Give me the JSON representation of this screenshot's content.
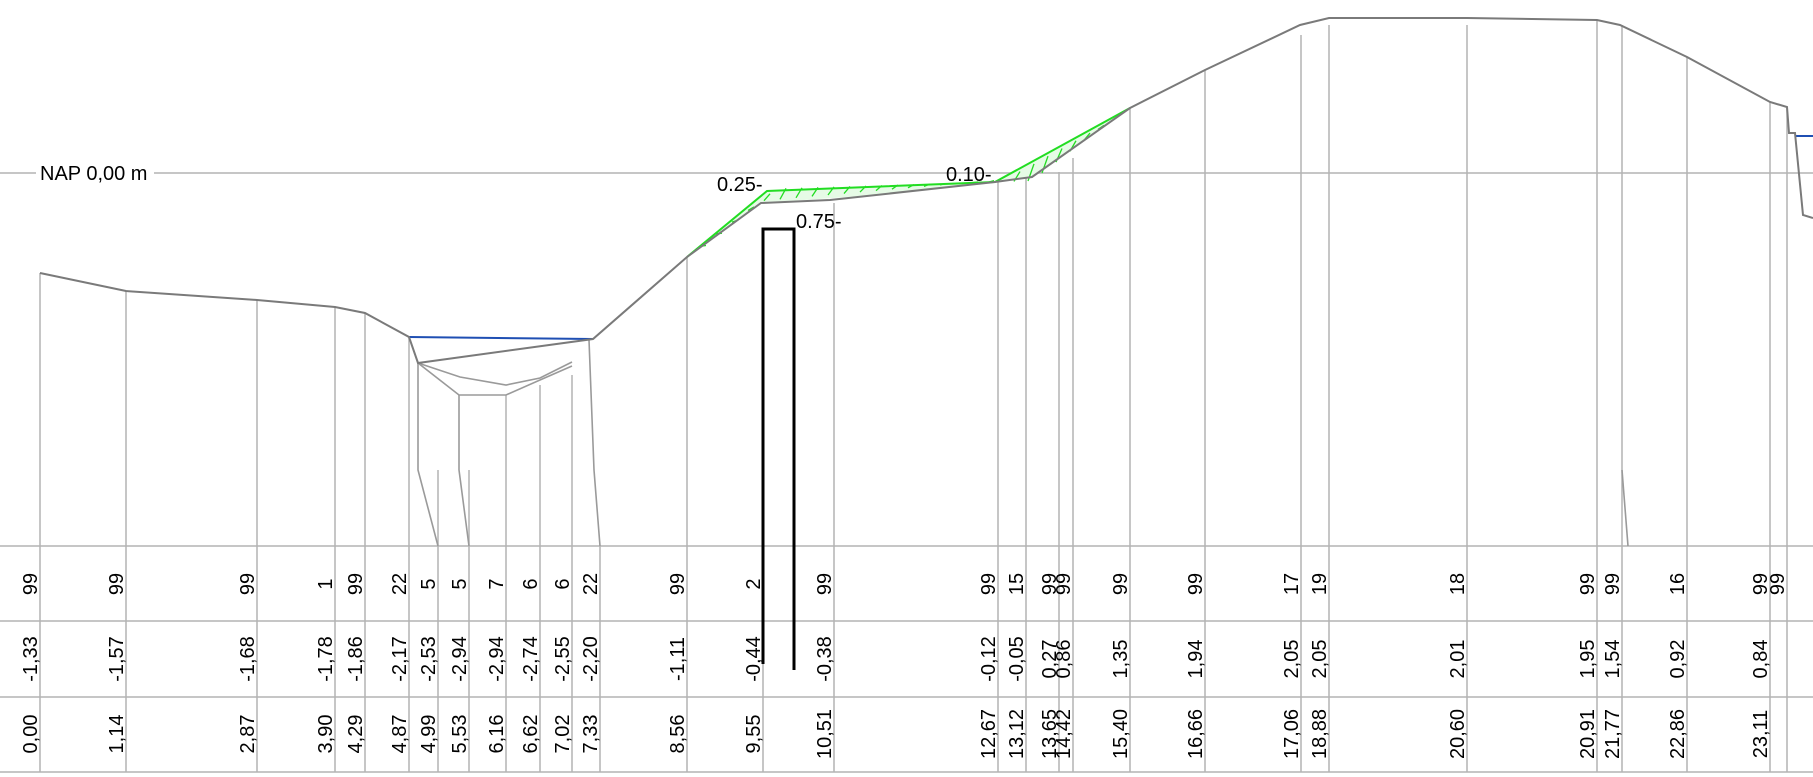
{
  "reference": {
    "label": "NAP 0,00 m"
  },
  "annotations": [
    {
      "key": "left_top",
      "text": "0.25-"
    },
    {
      "key": "sheet_pile",
      "text": "0.75-"
    },
    {
      "key": "right_top",
      "text": "0.10-"
    }
  ],
  "stations": [
    {
      "code": "99",
      "height": "-1,33",
      "distance": "0,00"
    },
    {
      "code": "99",
      "height": "-1,57",
      "distance": "1,14"
    },
    {
      "code": "99",
      "height": "-1,68",
      "distance": "2,87"
    },
    {
      "code": "1",
      "height": "-1,78",
      "distance": "3,90"
    },
    {
      "code": "99",
      "height": "-1,86",
      "distance": "4,29"
    },
    {
      "code": "22",
      "height": "-2,17",
      "distance": "4,87"
    },
    {
      "code": "5",
      "height": "-2,53",
      "distance": "4,99"
    },
    {
      "code": "5",
      "height": "-2,94",
      "distance": "5,53"
    },
    {
      "code": "7",
      "height": "-2,94",
      "distance": "6,16"
    },
    {
      "code": "6",
      "height": "-2,74",
      "distance": "6,62"
    },
    {
      "code": "6",
      "height": "-2,55",
      "distance": "7,02"
    },
    {
      "code": "22",
      "height": "-2,20",
      "distance": "7,33"
    },
    {
      "code": "99",
      "height": "-1,11",
      "distance": "8,56"
    },
    {
      "code": "2",
      "height": "-0,44",
      "distance": "9,55"
    },
    {
      "code": "99",
      "height": "-0,38",
      "distance": "10,51"
    },
    {
      "code": "99",
      "height": "-0,12",
      "distance": "12,67"
    },
    {
      "code": "15",
      "height": "-0,05",
      "distance": "13,12"
    },
    {
      "code": "99",
      "height": "0,27",
      "distance": "13,65"
    },
    {
      "code": "99",
      "height": "0,86",
      "distance": "14,42"
    },
    {
      "code": "99",
      "height": "1,35",
      "distance": "15,40"
    },
    {
      "code": "99",
      "height": "1,94",
      "distance": "16,66"
    },
    {
      "code": "17",
      "height": "2,05",
      "distance": "17,06"
    },
    {
      "code": "19",
      "height": "2,05",
      "distance": "18,88"
    },
    {
      "code": "18",
      "height": "2,01",
      "distance": "20,60"
    },
    {
      "code": "99",
      "height": "1,95",
      "distance": "20,91"
    },
    {
      "code": "99",
      "height": "1,54",
      "distance": "21,77"
    },
    {
      "code": "16",
      "height": "0,92",
      "distance": "22,86"
    },
    {
      "code": "99",
      "height": "0,84",
      "distance": "23,11"
    },
    {
      "code": "99",
      "height": "",
      "distance": ""
    }
  ],
  "colors": {
    "ground": "#7a7a7a",
    "grid": "#b4b4b4",
    "water": "#1f4fb3",
    "design": "#22dd22",
    "sheet_pile": "#000000"
  }
}
